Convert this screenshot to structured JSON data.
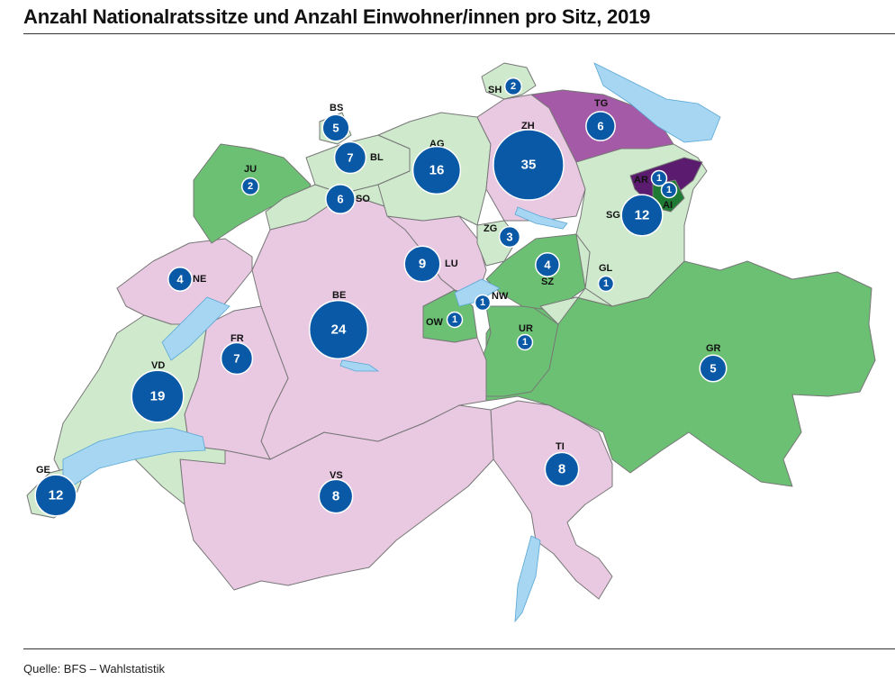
{
  "title": "Anzahl Nationalratssitze und Anzahl Einwohner/innen pro Sitz, 2019",
  "source": "Quelle: BFS – Wahlstatistik",
  "colors": {
    "pink": "#e9c9e2",
    "light_green": "#cfe9cc",
    "green": "#6cc073",
    "purple": "#a45aa6",
    "dark_purple": "#5b1b6f",
    "dark_green": "#1f7a34",
    "lake": "#a6d6f1",
    "bubble": "#0a59a6",
    "border": "#777777"
  },
  "cantons": [
    {
      "code": "GE",
      "seats": 12
    },
    {
      "code": "VD",
      "seats": 19
    },
    {
      "code": "NE",
      "seats": 4
    },
    {
      "code": "FR",
      "seats": 7
    },
    {
      "code": "BE",
      "seats": 24
    },
    {
      "code": "VS",
      "seats": 8
    },
    {
      "code": "JU",
      "seats": 2
    },
    {
      "code": "BS",
      "seats": 5
    },
    {
      "code": "BL",
      "seats": 7
    },
    {
      "code": "SO",
      "seats": 6
    },
    {
      "code": "AG",
      "seats": 16
    },
    {
      "code": "LU",
      "seats": 9
    },
    {
      "code": "OW",
      "seats": 1
    },
    {
      "code": "NW",
      "seats": 1
    },
    {
      "code": "UR",
      "seats": 1
    },
    {
      "code": "ZG",
      "seats": 3
    },
    {
      "code": "SZ",
      "seats": 4
    },
    {
      "code": "ZH",
      "seats": 35
    },
    {
      "code": "SH",
      "seats": 2
    },
    {
      "code": "TG",
      "seats": 6
    },
    {
      "code": "SG",
      "seats": 12
    },
    {
      "code": "AR",
      "seats": 1
    },
    {
      "code": "AI",
      "seats": 1
    },
    {
      "code": "GL",
      "seats": 1
    },
    {
      "code": "GR",
      "seats": 5
    },
    {
      "code": "TI",
      "seats": 8
    }
  ]
}
